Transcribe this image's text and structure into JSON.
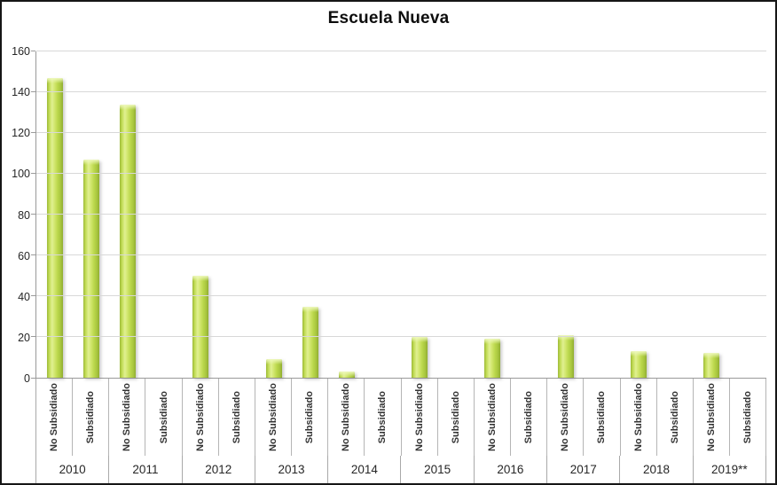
{
  "title": "Escuela Nueva",
  "chart_data": {
    "type": "bar",
    "title": "Escuela Nueva",
    "xlabel": "",
    "ylabel": "",
    "ylim": [
      0,
      160
    ],
    "y_ticks": [
      0,
      20,
      40,
      60,
      80,
      100,
      120,
      140,
      160
    ],
    "grid": true,
    "legend_position": "none",
    "groups": [
      "2010",
      "2011",
      "2012",
      "2013",
      "2014",
      "2015",
      "2016",
      "2017",
      "2018",
      "2019**"
    ],
    "subcategories": [
      "No Subsidiado",
      "Subsidiado"
    ],
    "values": [
      [
        147,
        107
      ],
      [
        134,
        0
      ],
      [
        50,
        0
      ],
      [
        9,
        35
      ],
      [
        3,
        0
      ],
      [
        20,
        0
      ],
      [
        19,
        0
      ],
      [
        21,
        0
      ],
      [
        13,
        0
      ],
      [
        12,
        0
      ]
    ]
  },
  "colors": {
    "bar_fill": "#bcd84d",
    "bar_highlight": "#eef8bd",
    "bar_edge": "#90ad32",
    "gridline": "#d8d8d8",
    "axis_line": "#9a9a9a",
    "separator": "#b5b5b5",
    "text": "#262626",
    "frame_border": "#161616"
  }
}
